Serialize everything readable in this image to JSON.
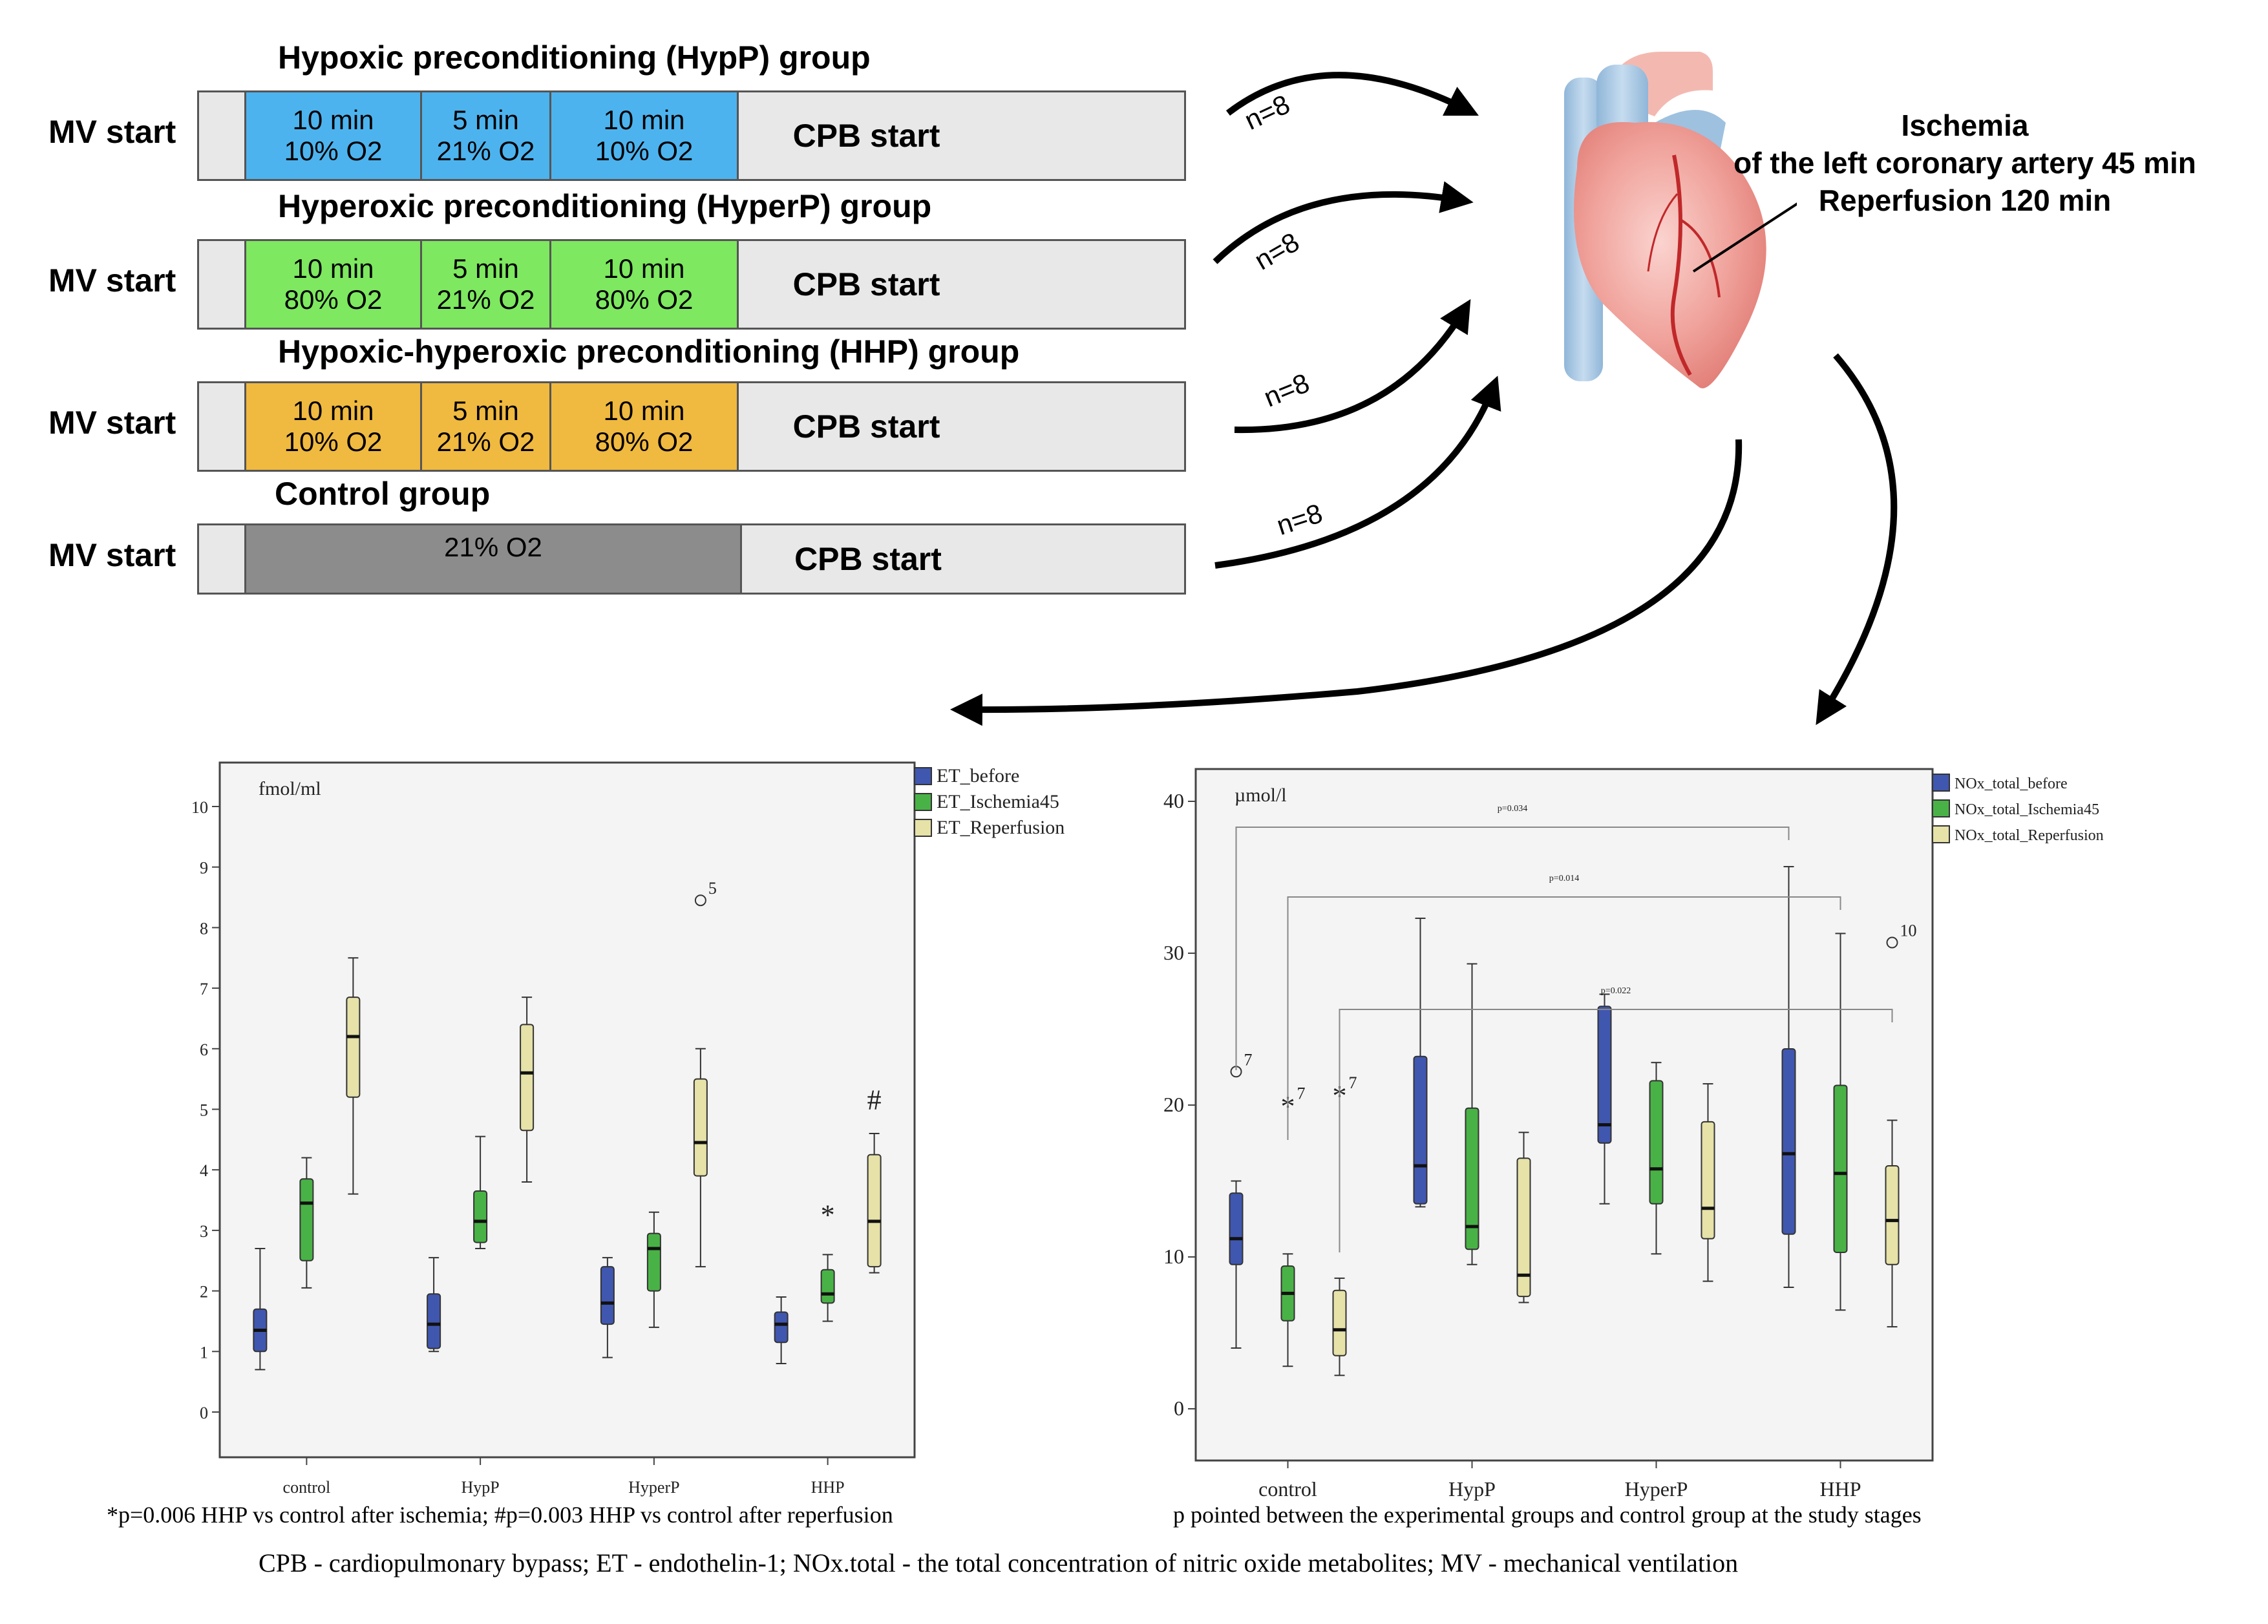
{
  "protocol": {
    "mv_label": "MV start",
    "cpb_label": "CPB start",
    "groups": [
      {
        "title": "Hypoxic preconditioning (HypP) group",
        "color": "#4db3ee",
        "segments": [
          {
            "time": "10 min",
            "o2": "10% O2"
          },
          {
            "time": "5 min",
            "o2": "21% O2"
          },
          {
            "time": "10 min",
            "o2": "10% O2"
          }
        ]
      },
      {
        "title": "Hyperoxic preconditioning (HyperP) group",
        "color": "#7ee860",
        "segments": [
          {
            "time": "10 min",
            "o2": "80% O2"
          },
          {
            "time": "5 min",
            "o2": "21% O2"
          },
          {
            "time": "10 min",
            "o2": "80% O2"
          }
        ]
      },
      {
        "title": "Hypoxic-hyperoxic preconditioning (HHP) group",
        "color": "#f0b940",
        "segments": [
          {
            "time": "10 min",
            "o2": "10% O2"
          },
          {
            "time": "5 min",
            "o2": "21% O2"
          },
          {
            "time": "10 min",
            "o2": "80% O2"
          }
        ]
      },
      {
        "title": "Control group",
        "color": "#8c8c8c",
        "segments": [
          {
            "time": "",
            "o2": "21% O2"
          }
        ]
      }
    ],
    "n_labels": [
      "n=8",
      "n=8",
      "n=8",
      "n=8"
    ]
  },
  "heart_caption": {
    "line1": "Ischemia",
    "line2": "of the left coronary artery 45 min",
    "line3": "Reperfusion 120 min"
  },
  "chart_data": [
    {
      "type": "box",
      "unit_label": "fmol/ml",
      "categories": [
        "control",
        "HypP",
        "HyperP",
        "HHP"
      ],
      "ylim": [
        0,
        10
      ],
      "yticks": [
        0,
        1,
        2,
        3,
        4,
        5,
        6,
        7,
        8,
        9,
        10
      ],
      "colors": {
        "ET_before": "#4057b0",
        "ET_Ischemia45": "#49b246",
        "ET_Reperfusion": "#e6e2a8"
      },
      "series": [
        {
          "name": "ET_before",
          "boxes": [
            {
              "min": 0.7,
              "q1": 1.0,
              "median": 1.35,
              "q3": 1.7,
              "max": 2.7
            },
            {
              "min": 1.0,
              "q1": 1.05,
              "median": 1.45,
              "q3": 1.95,
              "max": 2.55
            },
            {
              "min": 0.9,
              "q1": 1.45,
              "median": 1.8,
              "q3": 2.4,
              "max": 2.55
            },
            {
              "min": 0.8,
              "q1": 1.15,
              "median": 1.45,
              "q3": 1.65,
              "max": 1.9
            }
          ]
        },
        {
          "name": "ET_Ischemia45",
          "boxes": [
            {
              "min": 2.05,
              "q1": 2.5,
              "median": 3.45,
              "q3": 3.85,
              "max": 4.2
            },
            {
              "min": 2.7,
              "q1": 2.8,
              "median": 3.15,
              "q3": 3.65,
              "max": 4.55
            },
            {
              "min": 1.4,
              "q1": 2.0,
              "median": 2.7,
              "q3": 2.95,
              "max": 3.3
            },
            {
              "min": 1.5,
              "q1": 1.8,
              "median": 1.95,
              "q3": 2.35,
              "max": 2.6
            }
          ]
        },
        {
          "name": "ET_Reperfusion",
          "boxes": [
            {
              "min": 3.6,
              "q1": 5.2,
              "median": 6.2,
              "q3": 6.85,
              "max": 7.5
            },
            {
              "min": 3.8,
              "q1": 4.65,
              "median": 5.6,
              "q3": 6.4,
              "max": 6.85
            },
            {
              "min": 2.4,
              "q1": 3.9,
              "median": 4.45,
              "q3": 5.5,
              "max": 6.0
            },
            {
              "min": 2.3,
              "q1": 2.4,
              "median": 3.15,
              "q3": 4.25,
              "max": 4.6
            }
          ]
        }
      ],
      "outliers": [
        {
          "category": "HyperP",
          "series": "ET_Reperfusion",
          "value": 8.45,
          "label": "5"
        }
      ],
      "extremes": [
        {
          "category": "HHP",
          "series": "ET_Ischemia45",
          "value": 3.25
        }
      ],
      "annotations": [
        {
          "category": "HHP",
          "series": "ET_Reperfusion",
          "text": "#",
          "value": 5.0
        }
      ],
      "footnote": "*p=0.006 HHP vs control after ischemia; #p=0.003 HHP vs control after reperfusion"
    },
    {
      "type": "box",
      "unit_label": "µmol/l",
      "categories": [
        "control",
        "HypP",
        "HyperP",
        "HHP"
      ],
      "ylim": [
        0,
        40
      ],
      "yticks": [
        0,
        10,
        20,
        30,
        40
      ],
      "colors": {
        "NOx_total_before": "#4057b0",
        "NOx_total_Ischemia45": "#49b246",
        "NOx_total_Reperfusion": "#e6e2a8"
      },
      "series": [
        {
          "name": "NOx_total_before",
          "boxes": [
            {
              "min": 4.0,
              "q1": 9.5,
              "median": 11.2,
              "q3": 14.2,
              "max": 15.0
            },
            {
              "min": 13.3,
              "q1": 13.5,
              "median": 16.0,
              "q3": 23.2,
              "max": 32.3
            },
            {
              "min": 13.5,
              "q1": 17.5,
              "median": 18.7,
              "q3": 26.5,
              "max": 27.3
            },
            {
              "min": 8.0,
              "q1": 11.5,
              "median": 16.8,
              "q3": 23.7,
              "max": 35.7
            }
          ]
        },
        {
          "name": "NOx_total_Ischemia45",
          "boxes": [
            {
              "min": 2.8,
              "q1": 5.8,
              "median": 7.6,
              "q3": 9.4,
              "max": 10.2
            },
            {
              "min": 9.5,
              "q1": 10.5,
              "median": 12.0,
              "q3": 19.8,
              "max": 29.3
            },
            {
              "min": 10.2,
              "q1": 13.5,
              "median": 15.8,
              "q3": 21.6,
              "max": 22.8
            },
            {
              "min": 6.5,
              "q1": 10.3,
              "median": 15.5,
              "q3": 21.3,
              "max": 31.3
            }
          ]
        },
        {
          "name": "NOx_total_Reperfusion",
          "boxes": [
            {
              "min": 2.2,
              "q1": 3.5,
              "median": 5.2,
              "q3": 7.8,
              "max": 8.6
            },
            {
              "min": 7.0,
              "q1": 7.4,
              "median": 8.8,
              "q3": 16.5,
              "max": 18.2
            },
            {
              "min": 8.4,
              "q1": 11.2,
              "median": 13.2,
              "q3": 18.9,
              "max": 21.4
            },
            {
              "min": 5.4,
              "q1": 9.5,
              "median": 12.4,
              "q3": 16.0,
              "max": 19.0
            }
          ]
        }
      ],
      "outliers": [
        {
          "category": "control",
          "series": "NOx_total_before",
          "value": 22.2,
          "label": "7"
        },
        {
          "category": "HHP",
          "series": "NOx_total_Reperfusion",
          "value": 30.7,
          "label": "10"
        }
      ],
      "extremes": [
        {
          "category": "control",
          "series": "NOx_total_Ischemia45",
          "value": 19.9,
          "label": "7"
        },
        {
          "category": "control",
          "series": "NOx_total_Reperfusion",
          "value": 20.6,
          "label": "7"
        }
      ],
      "brackets": [
        {
          "from": "control",
          "to": "HHP",
          "series": "before",
          "y": 38.3,
          "label": "p=0.034"
        },
        {
          "from": "control",
          "to": "HHP",
          "series": "Ischemia45",
          "y": 33.7,
          "label": "p=0.014"
        },
        {
          "from": "control",
          "to": "HHP",
          "series": "Reperfusion",
          "y": 26.3,
          "label": "p=0.022"
        }
      ],
      "footnote": "p pointed between the experimental groups and control group at the study stages"
    }
  ],
  "bottom_legend": "CPB - cardiopulmonary bypass; ET - endothelin-1; NOx.total -  the total concentration of nitric oxide metabolites; MV - mechanical ventilation"
}
